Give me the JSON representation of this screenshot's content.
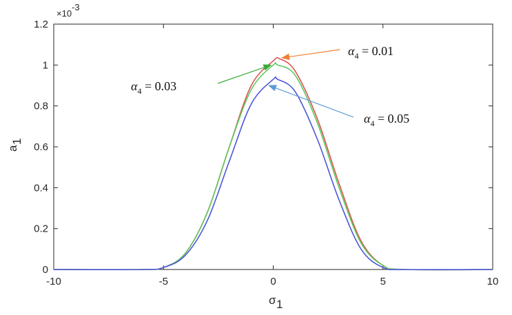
{
  "chart_data": {
    "type": "line",
    "xlabel": "σ",
    "xlabel_sub": "1",
    "ylabel": "a",
    "ylabel_sub": "1",
    "y_multiplier_label": "×10",
    "y_multiplier_exp": "-3",
    "xlim": [
      -10,
      10
    ],
    "ylim": [
      0,
      1.2
    ],
    "x_ticks": [
      -10,
      -5,
      0,
      5,
      10
    ],
    "x_tick_labels": [
      "-10",
      "-5",
      "0",
      "5",
      "10"
    ],
    "y_ticks": [
      0,
      0.2,
      0.4,
      0.6,
      0.8,
      1.0,
      1.2
    ],
    "y_tick_labels": [
      "0",
      "0.2",
      "0.4",
      "0.6",
      "0.8",
      "1",
      "1.2"
    ],
    "grid": false,
    "series": [
      {
        "name": "α4 = 0.01",
        "color": "#d9534f",
        "x": [
          -10,
          -6,
          -5,
          -4,
          -3,
          -2,
          -1,
          0,
          0.3,
          1,
          2,
          3,
          4,
          5,
          6,
          10
        ],
        "values": [
          0,
          0.0,
          0.01,
          0.08,
          0.28,
          0.6,
          0.9,
          1.02,
          1.03,
          0.97,
          0.74,
          0.42,
          0.14,
          0.02,
          0.0,
          0
        ]
      },
      {
        "name": "α4 = 0.03",
        "color": "#5cc85c",
        "x": [
          -10,
          -6,
          -5,
          -4,
          -3,
          -2,
          -1,
          0,
          0.2,
          1,
          2,
          3,
          4,
          5,
          6,
          10
        ],
        "values": [
          0,
          0.0,
          0.01,
          0.08,
          0.28,
          0.6,
          0.88,
          1.0,
          1.0,
          0.95,
          0.72,
          0.4,
          0.13,
          0.02,
          0.0,
          0
        ]
      },
      {
        "name": "α4 = 0.05",
        "color": "#4a55d8",
        "x": [
          -10,
          -6,
          -5,
          -4,
          -3,
          -2,
          -1,
          0,
          0.2,
          1,
          2,
          3,
          4,
          5,
          6,
          10
        ],
        "values": [
          0,
          0.0,
          0.01,
          0.07,
          0.24,
          0.53,
          0.81,
          0.93,
          0.93,
          0.87,
          0.64,
          0.34,
          0.1,
          0.01,
          0.0,
          0
        ]
      }
    ],
    "annotations": [
      {
        "symbol": "α",
        "sub": "4",
        "text": " = 0.01",
        "arrow_color": "#f08030",
        "target_x": 0.4,
        "target_y": 1.035
      },
      {
        "symbol": "α",
        "sub": "4",
        "text": " = 0.03",
        "arrow_color": "#3aaa3a",
        "target_x": -0.1,
        "target_y": 1.0
      },
      {
        "symbol": "α",
        "sub": "4",
        "text": " = 0.05",
        "arrow_color": "#5b9bd5",
        "target_x": -0.2,
        "target_y": 0.9
      }
    ]
  }
}
